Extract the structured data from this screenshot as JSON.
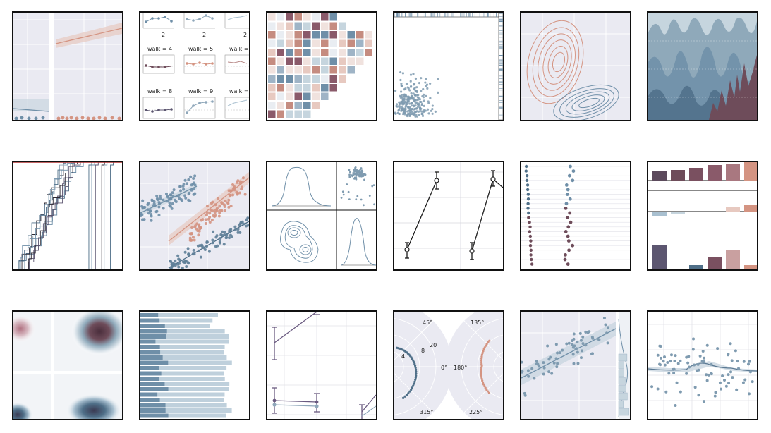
{
  "colors": {
    "blue": "#6f8fa8",
    "blue_dark": "#4f6f88",
    "blue_light": "#a9c0d0",
    "salmon": "#d49482",
    "salmon_dark": "#c07a66",
    "plum": "#6e4c5a",
    "dark": "#2e2a34",
    "panel": "#eaeaf2",
    "grid": "#ffffff"
  },
  "tiles": {
    "facet_walk": {
      "tick_labels": [
        "2",
        "2",
        "2"
      ],
      "titles": [
        "walk = 4",
        "walk = 5",
        "walk = 6",
        "walk = 8",
        "walk = 9",
        "walk = 1"
      ]
    },
    "polar": {
      "angle_labels": [
        "45°",
        "135°",
        "0°",
        "180°",
        "315°",
        "225°"
      ],
      "radial_labels": [
        "20",
        "8",
        "4"
      ]
    }
  }
}
